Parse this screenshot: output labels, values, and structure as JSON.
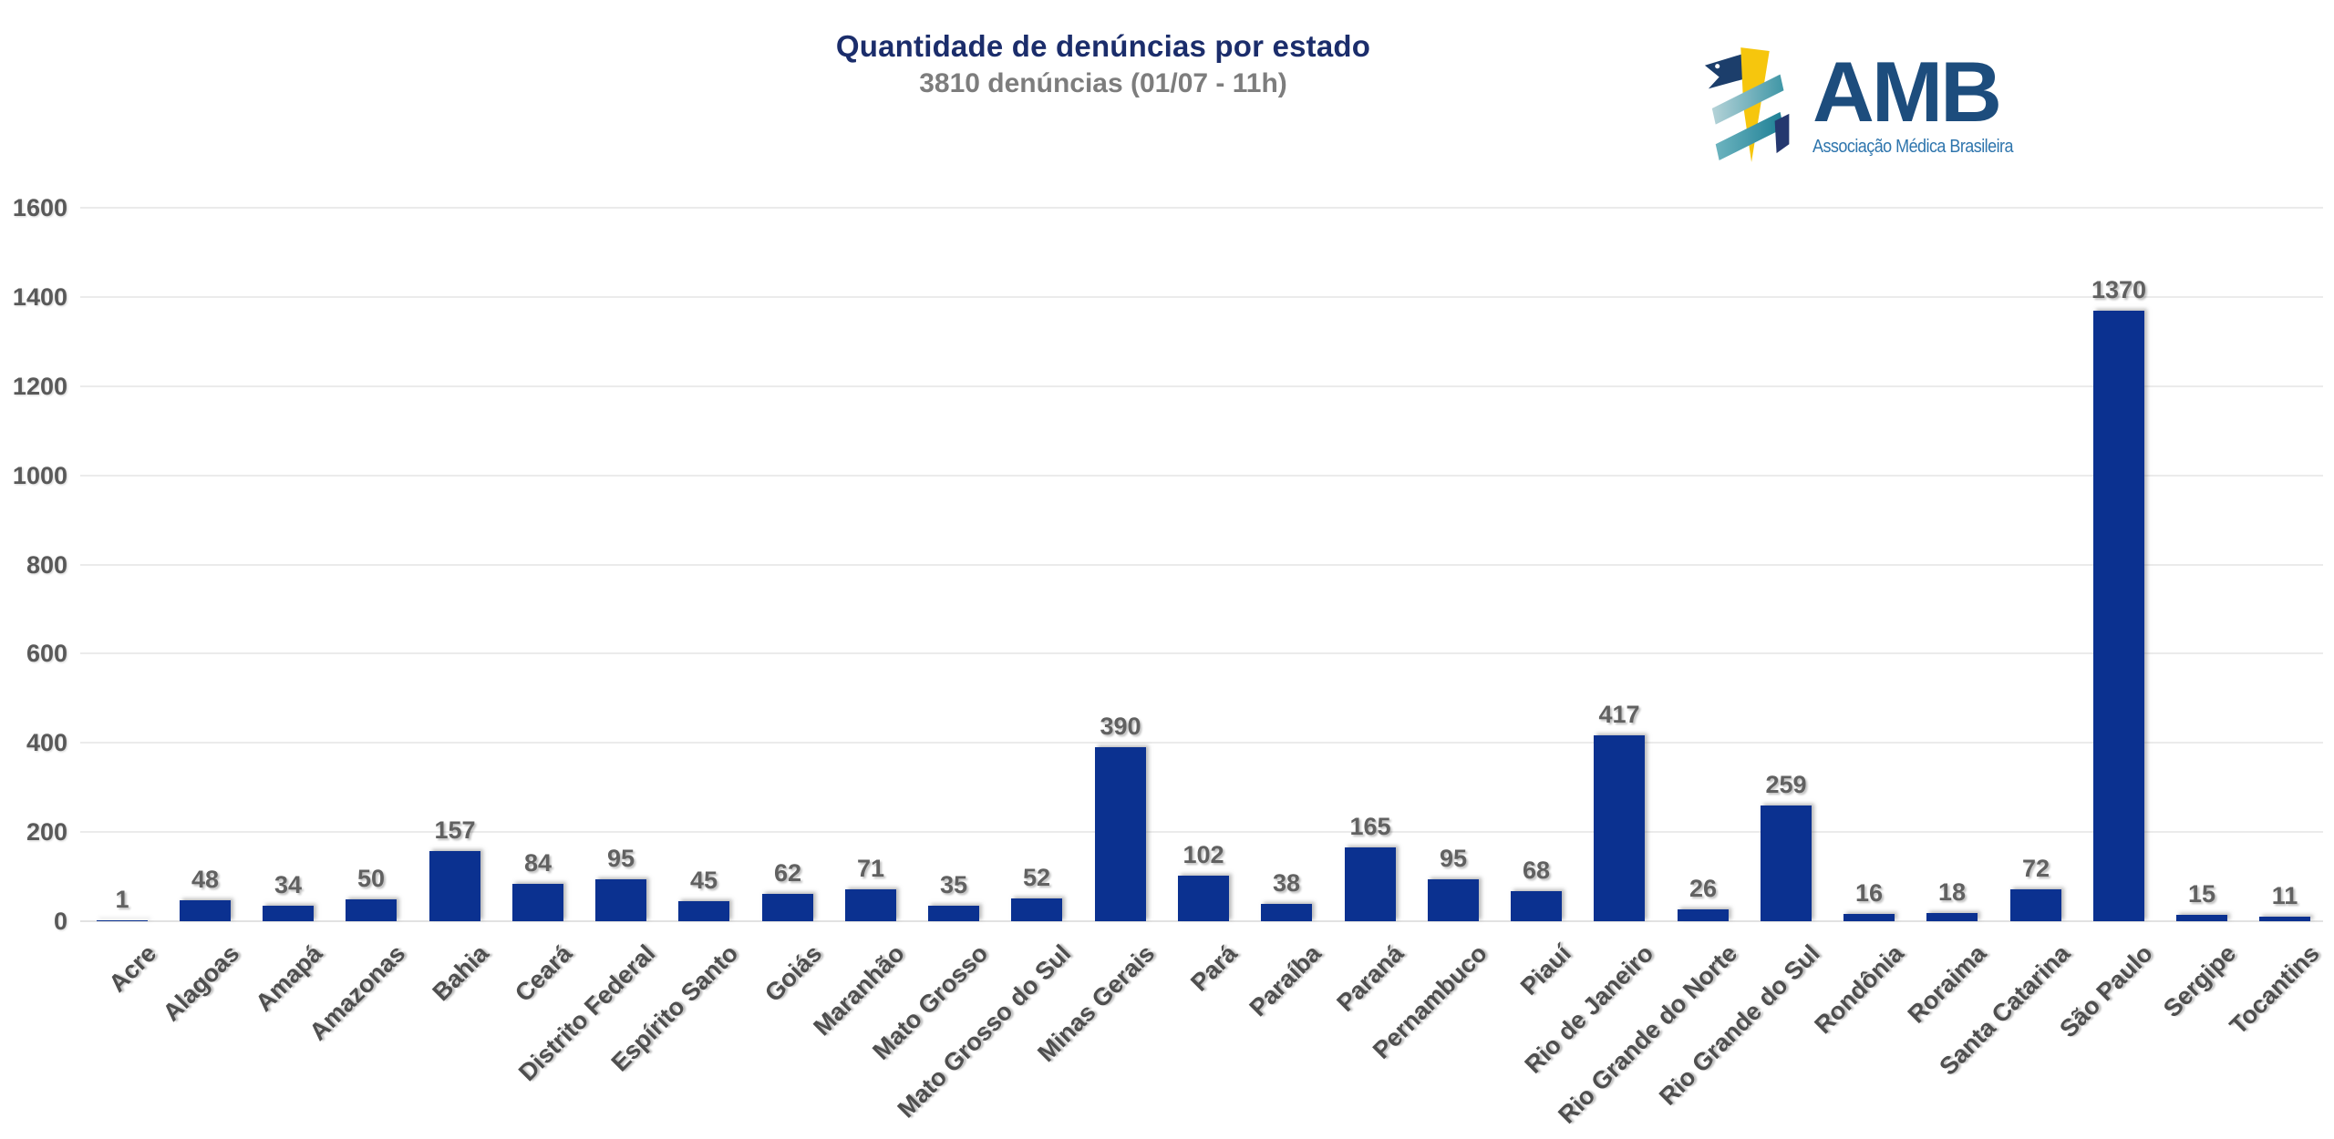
{
  "header": {
    "title": "Quantidade de denúncias por estado",
    "subtitle": "3810 denúncias (01/07 - 11h)"
  },
  "logo": {
    "acronym": "AMB",
    "org_name": "Associação Médica Brasileira"
  },
  "colors": {
    "bar": "#0b3190",
    "title": "#1b2d6b",
    "subtitle": "#7d7d7d",
    "axis_label": "#4e4e4e",
    "value_label": "#616161",
    "gridline": "#ebebeb",
    "logo_navy": "#1d4d7d",
    "logo_blue": "#2e75ad",
    "logo_yellow": "#f6c60d",
    "logo_teal_light": "#b5d3d8",
    "logo_teal_dark": "#1d7f95",
    "logo_flag_navy": "#1c3e6b"
  },
  "chart_data": {
    "type": "bar",
    "title": "Quantidade de denúncias por estado",
    "subtitle": "3810 denúncias (01/07 - 11h)",
    "categories": [
      "Acre",
      "Alagoas",
      "Amapá",
      "Amazonas",
      "Bahia",
      "Ceará",
      "Distrito Federal",
      "Espírito Santo",
      "Goiás",
      "Maranhão",
      "Mato Grosso",
      "Mato Grosso do Sul",
      "Minas Gerais",
      "Pará",
      "Paraíba",
      "Paraná",
      "Pernambuco",
      "Piauí",
      "Rio de Janeiro",
      "Rio Grande do Norte",
      "Rio Grande do Sul",
      "Rondônia",
      "Roraima",
      "Santa Catarina",
      "São Paulo",
      "Sergipe",
      "Tocantins"
    ],
    "values": [
      1,
      48,
      34,
      50,
      157,
      84,
      95,
      45,
      62,
      71,
      35,
      52,
      390,
      102,
      38,
      165,
      95,
      68,
      417,
      26,
      259,
      16,
      18,
      72,
      1370,
      15,
      11
    ],
    "value_labels_shown": true,
    "xlabel": "",
    "ylabel": "",
    "ylim": [
      0,
      1600
    ],
    "yticks": [
      0,
      200,
      400,
      600,
      800,
      1000,
      1200,
      1400,
      1600
    ],
    "grid": true,
    "legend": "none",
    "bar_color": "#0b3190",
    "x_label_rotation_deg": -45
  }
}
